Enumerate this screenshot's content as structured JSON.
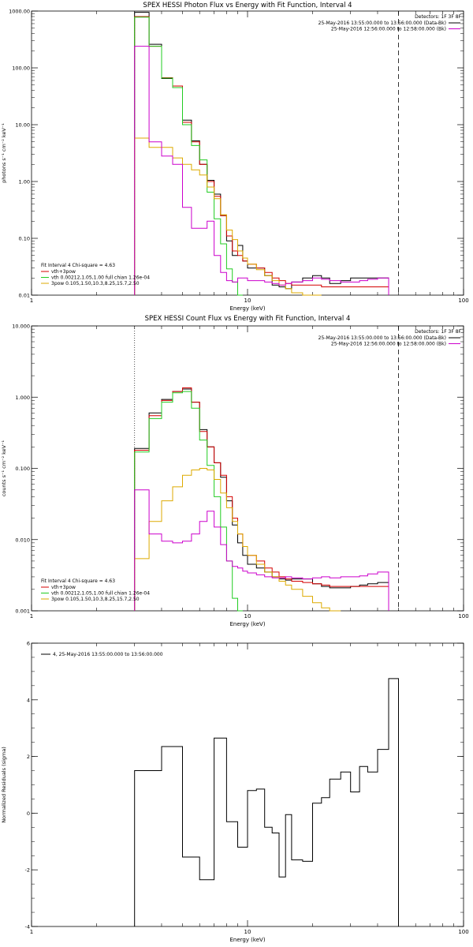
{
  "chart_data": [
    {
      "type": "line",
      "title": "SPEX HESSI Photon Flux vs Energy with Fit Function, Interval 4",
      "xlabel": "Energy (keV)",
      "ylabel": "photons s⁻¹ cm⁻² keV⁻¹",
      "xscale": "log",
      "yscale": "log",
      "xlim": [
        1,
        100
      ],
      "ylim": [
        0.01,
        1000
      ],
      "x_ticks": [
        "1",
        "10",
        "100"
      ],
      "y_ticks": [
        "0.01",
        "0.10",
        "1.00",
        "10.00",
        "100.00",
        "1000.00"
      ],
      "legend_topright": {
        "header": "Detectors: 1F 3F 8F",
        "lines": [
          {
            "text": "25-May-2016 13:55:00.000 to 13:56:00.000 (Data-Bk)",
            "color": "#000000"
          },
          {
            "text": "25-May-2016 12:56:00.000 to 12:58:00.000 (Bk)",
            "color": "#cc00cc"
          }
        ]
      },
      "legend_bottomleft": {
        "header": "Fit Interval 4   Chi-square = 4.63",
        "lines": [
          {
            "text": "vth+3pow",
            "color": "#d40000"
          },
          {
            "text": "vth 0.00212,1.05,1.00  full chian 1.26e-04",
            "color": "#22cc22"
          },
          {
            "text": "3pow 0.105,1.50,10.3,8.25,15.7,2.50",
            "color": "#ddaa00"
          }
        ]
      },
      "edges": [
        3.0,
        3.5,
        4.0,
        4.5,
        5.0,
        5.5,
        6.0,
        6.5,
        7.0,
        7.5,
        8.0,
        8.5,
        9.0,
        9.5,
        10.0,
        11.0,
        12.0,
        13.0,
        14.0,
        15.0,
        16.0,
        18.0,
        20.0,
        22.0,
        24.0,
        27.0,
        30.0,
        33.0,
        36.0,
        40.0,
        45.0,
        50.0
      ],
      "cutoff_x": 50,
      "series": [
        {
          "color": "#000000",
          "values": [
            950,
            260,
            65,
            48,
            12,
            5.2,
            2.0,
            1.05,
            0.6,
            0.25,
            0.09,
            0.05,
            0.075,
            0.04,
            0.03,
            0.03,
            0.022,
            0.015,
            0.014,
            0.013,
            0.017,
            0.02,
            0.022,
            0.02,
            0.016,
            0.018,
            0.02,
            0.02,
            0.02,
            0.02
          ]
        },
        {
          "color": "#d40000",
          "values": [
            800,
            240,
            67,
            48,
            11,
            5.0,
            2.0,
            1.0,
            0.55,
            0.25,
            0.11,
            0.06,
            0.05,
            0.04,
            0.035,
            0.03,
            0.025,
            0.02,
            0.018,
            0.016,
            0.015,
            0.015,
            0.015,
            0.014,
            0.014,
            0.014,
            0.014,
            0.014,
            0.014,
            0.014
          ]
        },
        {
          "color": "#22cc22",
          "values": [
            780,
            240,
            66,
            45,
            10,
            4.3,
            2.4,
            0.65,
            0.22,
            0.08,
            0.029,
            0.017,
            0.01
          ]
        },
        {
          "color": "#ddaa00",
          "values": [
            5.8,
            4.0,
            4.0,
            2.6,
            2.0,
            1.6,
            1.3,
            0.8,
            0.5,
            0.26,
            0.14,
            0.095,
            0.06,
            0.045,
            0.035,
            0.028,
            0.022,
            0.018,
            0.015,
            0.013,
            0.011,
            0.01,
            0.009
          ]
        },
        {
          "color": "#cc00cc",
          "values": [
            240,
            5.0,
            2.8,
            2.0,
            0.35,
            0.15,
            0.15,
            0.2,
            0.05,
            0.025,
            0.018,
            0.017,
            0.02,
            0.02,
            0.018,
            0.018,
            0.017,
            0.016,
            0.015,
            0.016,
            0.017,
            0.018,
            0.02,
            0.019,
            0.018,
            0.017,
            0.017,
            0.018,
            0.019,
            0.02
          ]
        }
      ]
    },
    {
      "type": "line",
      "title": "SPEX HESSI Count Flux vs Energy with Fit Function, Interval 4",
      "xlabel": "Energy (keV)",
      "ylabel": "counts s⁻¹ cm⁻² keV⁻¹",
      "xscale": "log",
      "yscale": "log",
      "xlim": [
        1,
        100
      ],
      "ylim": [
        0.001,
        10
      ],
      "x_ticks": [
        "1",
        "10",
        "100"
      ],
      "y_ticks": [
        "0.001",
        "0.010",
        "0.100",
        "1.000",
        "10.000"
      ],
      "legend_topright": {
        "header": "Detectors: 1F 3F 8F",
        "lines": [
          {
            "text": "25-May-2016 13:55:00.000 to 13:56:00.000 (Data-Bk)",
            "color": "#000000"
          },
          {
            "text": "25-May-2016 12:56:00.000 to 12:58:00.000 (Bk)",
            "color": "#cc00cc"
          }
        ]
      },
      "legend_bottomleft": {
        "header": "Fit Interval 4   Chi-square = 4.63",
        "lines": [
          {
            "text": "vth+3pow",
            "color": "#d40000"
          },
          {
            "text": "vth 0.00212,1.05,1.00  full chian 1.26e-04",
            "color": "#22cc22"
          },
          {
            "text": "3pow 0.105,1.50,10.3,8.25,15.7,2.50",
            "color": "#ddaa00"
          }
        ]
      },
      "edges": [
        3.0,
        3.5,
        4.0,
        4.5,
        5.0,
        5.5,
        6.0,
        6.5,
        7.0,
        7.5,
        8.0,
        8.5,
        9.0,
        9.5,
        10.0,
        11.0,
        12.0,
        13.0,
        14.0,
        15.0,
        16.0,
        18.0,
        20.0,
        22.0,
        24.0,
        27.0,
        30.0,
        33.0,
        36.0,
        40.0,
        45.0,
        50.0
      ],
      "cutoff_x": 50,
      "series": [
        {
          "color": "#000000",
          "values": [
            0.19,
            0.6,
            0.93,
            1.2,
            1.3,
            0.85,
            0.35,
            0.2,
            0.12,
            0.075,
            0.035,
            0.016,
            0.009,
            0.006,
            0.0045,
            0.004,
            0.0035,
            0.003,
            0.0028,
            0.0027,
            0.0028,
            0.0028,
            0.0024,
            0.0022,
            0.0021,
            0.0021,
            0.0022,
            0.0023,
            0.0024,
            0.0025
          ]
        },
        {
          "color": "#d40000",
          "values": [
            0.18,
            0.55,
            0.9,
            1.2,
            1.35,
            0.85,
            0.33,
            0.2,
            0.12,
            0.08,
            0.04,
            0.02,
            0.012,
            0.008,
            0.006,
            0.005,
            0.004,
            0.0035,
            0.003,
            0.0028,
            0.0026,
            0.0025,
            0.0024,
            0.0023,
            0.0022,
            0.0022,
            0.0022,
            0.0022,
            0.0022,
            0.0022
          ]
        },
        {
          "color": "#22cc22",
          "values": [
            0.17,
            0.5,
            0.85,
            1.15,
            1.2,
            0.7,
            0.25,
            0.11,
            0.04,
            0.015,
            0.005,
            0.0015,
            0.001
          ]
        },
        {
          "color": "#ddaa00",
          "values": [
            0.0054,
            0.018,
            0.035,
            0.055,
            0.08,
            0.095,
            0.1,
            0.095,
            0.07,
            0.045,
            0.028,
            0.018,
            0.012,
            0.008,
            0.006,
            0.0045,
            0.0035,
            0.003,
            0.0026,
            0.0023,
            0.002,
            0.0016,
            0.0013,
            0.0011,
            0.001
          ]
        },
        {
          "color": "#cc00cc",
          "values": [
            0.05,
            0.012,
            0.0095,
            0.009,
            0.0095,
            0.012,
            0.018,
            0.025,
            0.015,
            0.0085,
            0.005,
            0.0042,
            0.004,
            0.0036,
            0.0034,
            0.0032,
            0.003,
            0.0029,
            0.0029,
            0.003,
            0.0029,
            0.0028,
            0.0029,
            0.003,
            0.0029,
            0.003,
            0.003,
            0.0031,
            0.0033,
            0.0035
          ]
        }
      ]
    },
    {
      "type": "line",
      "title": "",
      "xlabel": "Energy (keV)",
      "ylabel": "Normalized Residuals (sigma)",
      "xscale": "log",
      "yscale": "linear",
      "xlim": [
        1,
        100
      ],
      "ylim": [
        -4,
        6
      ],
      "x_ticks": [
        "1",
        "10",
        "100"
      ],
      "y_ticks": [
        "-4",
        "-2",
        "0",
        "2",
        "4",
        "6"
      ],
      "legend": "4, 25-May-2016 13:55:00.000 to 13:56:00.000",
      "edges": [
        3.0,
        4.0,
        5.0,
        6.0,
        7.0,
        8.0,
        9.0,
        10.0,
        11.0,
        12.0,
        13.0,
        14.0,
        15.0,
        16.0,
        18.0,
        20.0,
        22.0,
        24.0,
        27.0,
        30.0,
        33.0,
        36.0,
        40.0,
        45.0,
        50.0
      ],
      "series": [
        {
          "color": "#000000",
          "values": [
            1.5,
            2.35,
            -1.55,
            -2.35,
            2.65,
            -0.3,
            -1.2,
            0.8,
            0.85,
            -0.5,
            -0.7,
            -2.25,
            -0.05,
            -1.65,
            -1.7,
            0.35,
            0.55,
            1.2,
            1.45,
            0.75,
            1.65,
            1.45,
            2.25,
            4.75
          ]
        }
      ]
    }
  ]
}
